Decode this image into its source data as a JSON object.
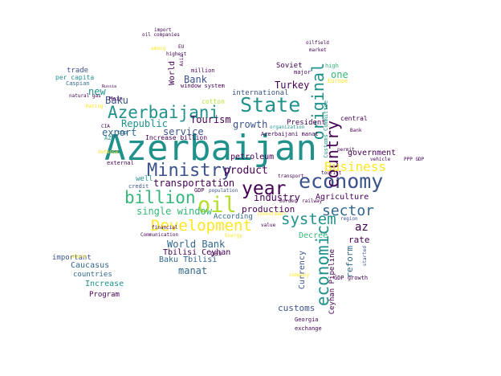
{
  "palette": [
    "#440154",
    "#31688e",
    "#21918c",
    "#35b779",
    "#fde725",
    "#3b528b",
    "#5ec962",
    "#b5de2b"
  ],
  "words": [
    {
      "text": "Azerbaijan",
      "color": "#21918c"
    },
    {
      "text": "Azerbaijani",
      "color": "#21918c"
    },
    {
      "text": "State",
      "color": "#21918c"
    },
    {
      "text": "economy",
      "color": "#3b528b"
    },
    {
      "text": "Ministry",
      "color": "#3b528b"
    },
    {
      "text": "Development",
      "color": "#fde725"
    },
    {
      "text": "billion",
      "color": "#35b779"
    },
    {
      "text": "oil",
      "color": "#b5de2b"
    },
    {
      "text": "year",
      "color": "#440154"
    },
    {
      "text": "system",
      "color": "#21918c"
    },
    {
      "text": "economic",
      "color": "#21918c"
    },
    {
      "text": "country",
      "color": "#440154"
    },
    {
      "text": "original",
      "color": "#21918c"
    },
    {
      "text": "Business",
      "color": "#fde725"
    },
    {
      "text": "sector",
      "color": "#31688e"
    },
    {
      "text": "single window",
      "color": "#35b779"
    },
    {
      "text": "Tourism",
      "color": "#440154"
    },
    {
      "text": "product",
      "color": "#440154"
    },
    {
      "text": "transportation",
      "color": "#440154"
    },
    {
      "text": "Bank",
      "color": "#3b528b"
    },
    {
      "text": "Republic",
      "color": "#21918c"
    },
    {
      "text": "service",
      "color": "#3b528b"
    },
    {
      "text": "growth",
      "color": "#3b528b"
    },
    {
      "text": "export",
      "color": "#31688e"
    },
    {
      "text": "new",
      "color": "#21918c"
    },
    {
      "text": "Baku",
      "color": "#3b528b"
    },
    {
      "text": "Turkey",
      "color": "#440154"
    },
    {
      "text": "one",
      "color": "#35b779"
    },
    {
      "text": "World Bank",
      "color": "#31688e"
    },
    {
      "text": "industry",
      "color": "#440154"
    },
    {
      "text": "production",
      "color": "#440154"
    },
    {
      "text": "Agriculture",
      "color": "#440154"
    },
    {
      "text": "government",
      "color": "#440154"
    },
    {
      "text": "customs",
      "color": "#3b528b"
    },
    {
      "text": "manat",
      "color": "#31688e"
    },
    {
      "text": "Caucasus",
      "color": "#31688e"
    },
    {
      "text": "Increase",
      "color": "#21918c"
    },
    {
      "text": "Program",
      "color": "#440154"
    },
    {
      "text": "countries",
      "color": "#31688e"
    },
    {
      "text": "important",
      "color": "#3b528b"
    },
    {
      "text": "Tbilisi Ceyhan",
      "color": "#440154"
    },
    {
      "text": "Baku Tbilisi",
      "color": "#31688e"
    },
    {
      "text": "petroleum",
      "color": "#440154"
    },
    {
      "text": "According",
      "color": "#31688e"
    },
    {
      "text": "reform",
      "color": "#31688e"
    },
    {
      "text": "Currency",
      "color": "#3b528b"
    },
    {
      "text": "rate",
      "color": "#440154"
    },
    {
      "text": "Decree",
      "color": "#35b779"
    },
    {
      "text": "Ceyhan Pipeline",
      "color": "#440154"
    },
    {
      "text": "international",
      "color": "#3b528b"
    },
    {
      "text": "Soviet",
      "color": "#440154"
    },
    {
      "text": "World",
      "color": "#440154"
    },
    {
      "text": "az",
      "color": "#440154"
    },
    {
      "text": "trade",
      "color": "#3b528b"
    },
    {
      "text": "per capita",
      "color": "#21918c"
    },
    {
      "text": "Caspian",
      "color": "#31688e"
    },
    {
      "text": "President",
      "color": "#440154"
    },
    {
      "text": "Azerbaijani manat",
      "color": "#440154"
    },
    {
      "text": "Customs Committee",
      "color": "#21918c"
    },
    {
      "text": "Europe",
      "color": "#fde725"
    },
    {
      "text": "major",
      "color": "#440154"
    },
    {
      "text": "high",
      "color": "#35b779"
    },
    {
      "text": "central",
      "color": "#440154"
    },
    {
      "text": "gas",
      "color": "#440154"
    },
    {
      "text": "GDP",
      "color": "#440154"
    },
    {
      "text": "GDP growth",
      "color": "#440154"
    },
    {
      "text": "Georgia",
      "color": "#440154"
    },
    {
      "text": "exchange",
      "color": "#440154"
    },
    {
      "text": "well",
      "color": "#21918c"
    },
    {
      "text": "credit",
      "color": "#3b528b"
    },
    {
      "text": "cotton",
      "color": "#b5de2b"
    },
    {
      "text": "million",
      "color": "#440154"
    },
    {
      "text": "Increase billion",
      "color": "#440154"
    },
    {
      "text": "Main",
      "color": "#440154"
    },
    {
      "text": "top",
      "color": "#31688e"
    },
    {
      "text": "AZN",
      "color": "#21918c"
    },
    {
      "text": "external",
      "color": "#440154"
    },
    {
      "text": "import",
      "color": "#440154"
    },
    {
      "text": "oil companies",
      "color": "#440154"
    },
    {
      "text": "highest",
      "color": "#440154"
    },
    {
      "text": "EU",
      "color": "#440154"
    },
    {
      "text": "among",
      "color": "#fde725"
    },
    {
      "text": "Asia",
      "color": "#440154"
    },
    {
      "text": "oilfield",
      "color": "#440154"
    },
    {
      "text": "market",
      "color": "#440154"
    },
    {
      "text": "permit",
      "color": "#440154"
    },
    {
      "text": "tourist",
      "color": "#440154"
    },
    {
      "text": "PPP GDP",
      "color": "#440154"
    },
    {
      "text": "vehicle",
      "color": "#440154"
    },
    {
      "text": "transport",
      "color": "#440154"
    },
    {
      "text": "border",
      "color": "#440154"
    },
    {
      "text": "railway",
      "color": "#440154"
    },
    {
      "text": "value",
      "color": "#440154"
    },
    {
      "text": "Communication",
      "color": "#440154"
    },
    {
      "text": "Energy",
      "color": "#fde725"
    },
    {
      "text": "population",
      "color": "#3b528b"
    },
    {
      "text": "region",
      "color": "#3b528b"
    },
    {
      "text": "started",
      "color": "#3b528b"
    },
    {
      "text": "window system",
      "color": "#440154"
    },
    {
      "text": "defense",
      "color": "#fde725"
    },
    {
      "text": "financial",
      "color": "#440154"
    },
    {
      "text": "organization",
      "color": "#21918c"
    },
    {
      "text": "natural gas",
      "color": "#440154"
    },
    {
      "text": "Rating",
      "color": "#fde725"
    },
    {
      "text": "CIA",
      "color": "#440154"
    },
    {
      "text": "Russia",
      "color": "#440154"
    },
    {
      "text": "share",
      "color": "#fde725"
    },
    {
      "text": "investment",
      "color": "#fde725"
    },
    {
      "text": "Bank",
      "color": "#440154"
    },
    {
      "text": "company",
      "color": "#fde725"
    }
  ]
}
